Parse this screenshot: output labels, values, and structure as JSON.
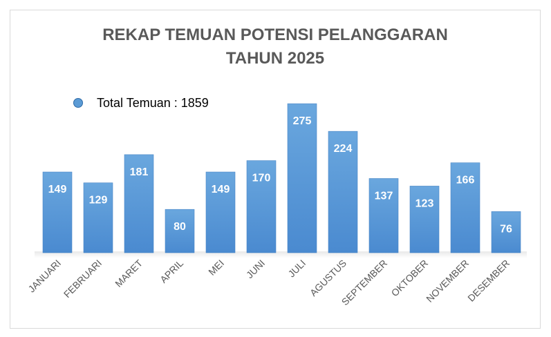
{
  "chart_data": {
    "type": "bar",
    "title": [
      "REKAP TEMUAN POTENSI PELANGGARAN",
      "TAHUN 2025"
    ],
    "legend": "Total Temuan : 1859",
    "categories": [
      "JANUARI",
      "FEBRUARI",
      "MARET",
      "APRIL",
      "MEI",
      "JUNI",
      "JULI",
      "AGUSTUS",
      "SEPTEMBER",
      "OKTOBER",
      "NOVEMBER",
      "DESEMBER"
    ],
    "values": [
      149,
      129,
      181,
      80,
      149,
      170,
      275,
      224,
      137,
      123,
      166,
      76
    ],
    "series": [
      {
        "name": "Total Temuan",
        "values": [
          149,
          129,
          181,
          80,
          149,
          170,
          275,
          224,
          137,
          123,
          166,
          76
        ]
      }
    ],
    "xlabel": "",
    "ylabel": "",
    "ylim": [
      0,
      300
    ],
    "grid": false,
    "legend_position": "top-left",
    "data_labels": true,
    "bar_color": "#5b9bd5",
    "label_color": "#ffffff"
  }
}
